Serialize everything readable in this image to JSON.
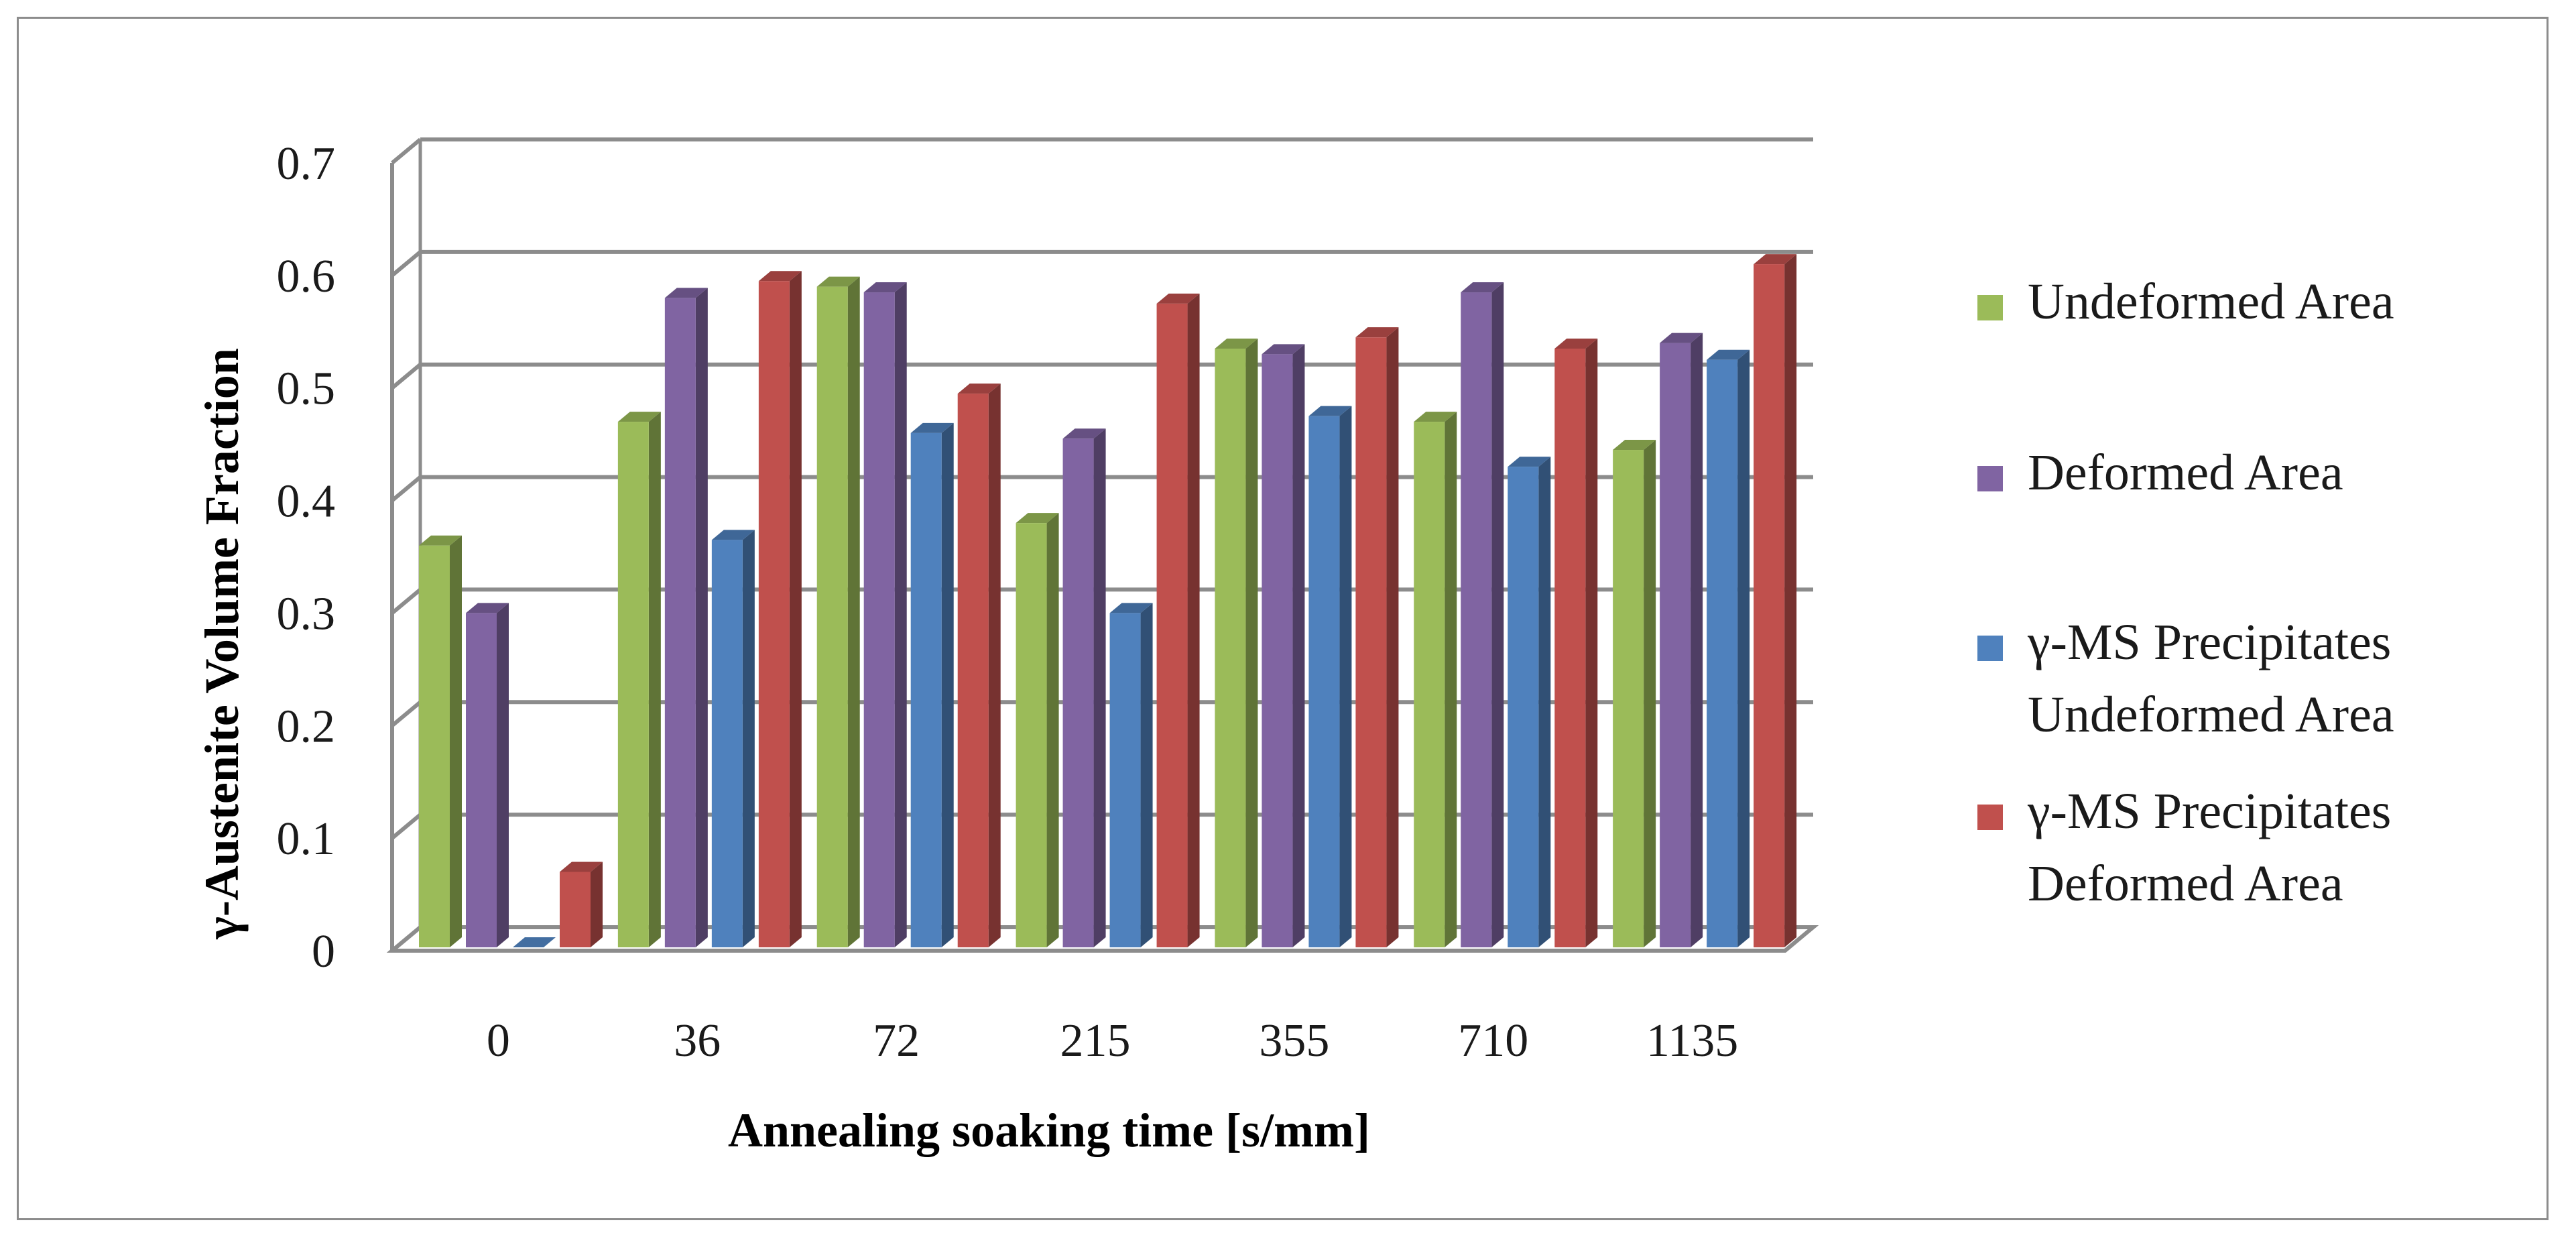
{
  "chart_data": {
    "type": "bar",
    "style": "3d-clustered-column",
    "title": "",
    "xlabel": "Annealing soaking time [s/mm]",
    "ylabel": "γ-Austenite Volume Fraction",
    "ylim": [
      0,
      0.7
    ],
    "ytick_values": [
      0,
      0.1,
      0.2,
      0.3,
      0.4,
      0.5,
      0.6,
      0.7
    ],
    "ytick_labels": [
      "0",
      "0.1",
      "0.2",
      "0.3",
      "0.4",
      "0.5",
      "0.6",
      "0.7"
    ],
    "grid": true,
    "legend_position": "right",
    "categories": [
      "0",
      "36",
      "72",
      "215",
      "355",
      "710",
      "1135"
    ],
    "series": [
      {
        "name": "Undeformed Area",
        "color": "#9bbb59",
        "values": [
          0.36,
          0.47,
          0.59,
          0.38,
          0.535,
          0.47,
          0.445
        ]
      },
      {
        "name": "Deformed Area",
        "color": "#8064a2",
        "values": [
          0.3,
          0.58,
          0.585,
          0.455,
          0.53,
          0.585,
          0.54
        ]
      },
      {
        "name": "γ-MS Precipitates Undeformed Area",
        "color": "#4f81bd",
        "values": [
          0.0,
          0.365,
          0.46,
          0.3,
          0.475,
          0.43,
          0.525
        ]
      },
      {
        "name": "γ-MS Precipitates Deformed Area",
        "color": "#c0504d",
        "values": [
          0.07,
          0.595,
          0.495,
          0.575,
          0.545,
          0.535,
          0.61
        ]
      }
    ],
    "legend": [
      {
        "lines": [
          "Undeformed Area"
        ]
      },
      {
        "lines": [
          "Deformed Area"
        ]
      },
      {
        "lines": [
          "γ-MS Precipitates",
          "Undeformed Area"
        ]
      },
      {
        "lines": [
          "γ-MS Precipitates",
          "Deformed Area"
        ]
      }
    ]
  }
}
